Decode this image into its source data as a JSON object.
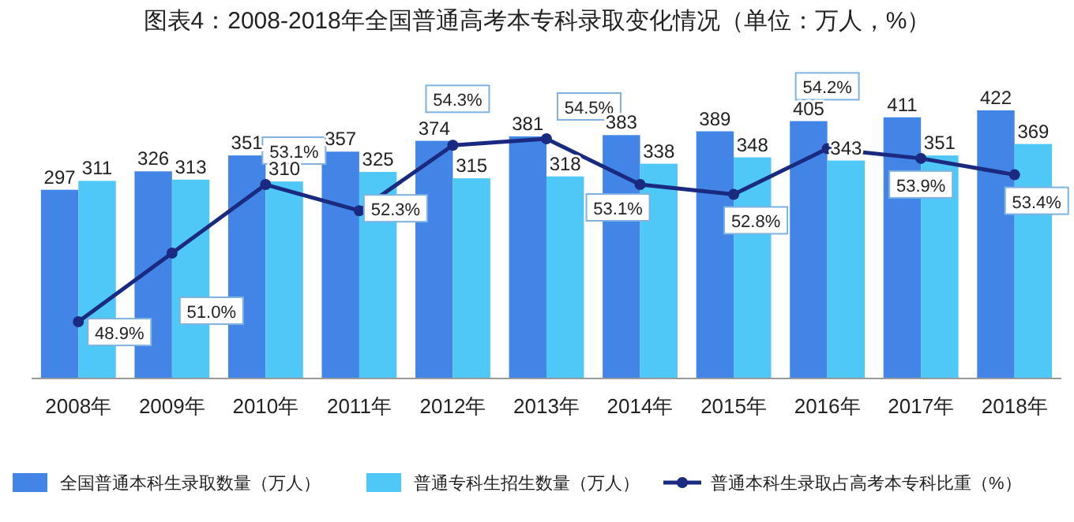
{
  "chart_data": {
    "type": "bar",
    "title": "图表4：2008-2018年全国普通高考本专科录取变化情况（单位：万人，%）",
    "categories": [
      "2008年",
      "2009年",
      "2010年",
      "2011年",
      "2012年",
      "2013年",
      "2014年",
      "2015年",
      "2016年",
      "2017年",
      "2018年"
    ],
    "series": [
      {
        "name": "全国普通本科生录取数量（万人）",
        "color": "#4285e6",
        "values": [
          297,
          326,
          351,
          357,
          374,
          381,
          383,
          389,
          405,
          411,
          422
        ]
      },
      {
        "name": "普通专科生招生数量（万人）",
        "color": "#4fc8f7",
        "values": [
          311,
          313,
          310,
          325,
          315,
          318,
          338,
          348,
          343,
          351,
          369
        ]
      },
      {
        "name": "普通本科生录取占高考本专科比重（%）",
        "type": "line",
        "axis": "y2",
        "color": "#1a2a80",
        "marker": "circle",
        "values": [
          48.9,
          51.0,
          53.1,
          52.3,
          54.3,
          54.5,
          53.1,
          52.8,
          54.2,
          53.9,
          53.4
        ],
        "value_labels": [
          "48.9%",
          "51.0%",
          "53.1%",
          "52.3%",
          "54.3%",
          "54.5%",
          "53.1%",
          "52.8%",
          "54.2%",
          "53.9%",
          "53.4%"
        ]
      }
    ],
    "tick_labels": "x",
    "data_labels": true,
    "legend": "bottom"
  }
}
